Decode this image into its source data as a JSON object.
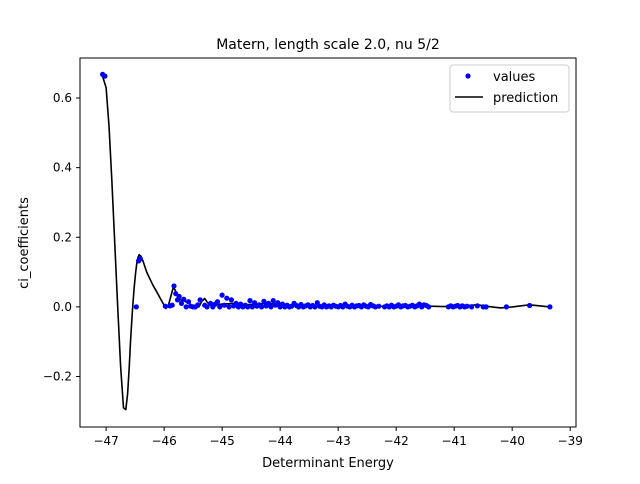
{
  "chart_data": {
    "type": "scatter",
    "title": "Matern, length scale 2.0, nu 5/2",
    "xlabel": "Determinant Energy",
    "ylabel": "ci_coefficients",
    "xlim": [
      -47.45,
      -38.9
    ],
    "ylim": [
      -0.345,
      0.715
    ],
    "xticks": [
      -47,
      -46,
      -45,
      -44,
      -43,
      -42,
      -41,
      -40,
      -39
    ],
    "yticks": [
      -0.2,
      0.0,
      0.2,
      0.4,
      0.6
    ],
    "grid": false,
    "legend": {
      "position": "top-right",
      "entries": [
        "values",
        "prediction"
      ]
    },
    "colors": {
      "values": "#0000ff",
      "prediction": "#000000"
    },
    "series": [
      {
        "name": "values",
        "style": "points",
        "x": [
          -47.06,
          -47.02,
          -46.48,
          -46.44,
          -46.41,
          -45.98,
          -45.9,
          -45.86,
          -45.83,
          -45.8,
          -45.77,
          -45.74,
          -45.7,
          -45.66,
          -45.62,
          -45.58,
          -45.54,
          -45.5,
          -45.46,
          -45.42,
          -45.38,
          -45.3,
          -45.26,
          -45.2,
          -45.16,
          -45.12,
          -45.08,
          -45.04,
          -45.0,
          -44.96,
          -44.92,
          -44.88,
          -44.84,
          -44.8,
          -44.76,
          -44.72,
          -44.68,
          -44.64,
          -44.6,
          -44.56,
          -44.52,
          -44.48,
          -44.44,
          -44.4,
          -44.36,
          -44.32,
          -44.28,
          -44.24,
          -44.2,
          -44.16,
          -44.12,
          -44.08,
          -44.04,
          -44.0,
          -43.96,
          -43.92,
          -43.88,
          -43.84,
          -43.8,
          -43.76,
          -43.72,
          -43.68,
          -43.64,
          -43.6,
          -43.56,
          -43.52,
          -43.48,
          -43.44,
          -43.4,
          -43.36,
          -43.32,
          -43.28,
          -43.24,
          -43.2,
          -43.16,
          -43.12,
          -43.08,
          -43.04,
          -43.0,
          -42.96,
          -42.92,
          -42.88,
          -42.84,
          -42.8,
          -42.76,
          -42.72,
          -42.68,
          -42.64,
          -42.6,
          -42.56,
          -42.52,
          -42.48,
          -42.44,
          -42.4,
          -42.36,
          -42.3,
          -42.2,
          -42.16,
          -42.12,
          -42.08,
          -42.04,
          -42.0,
          -41.96,
          -41.92,
          -41.88,
          -41.84,
          -41.8,
          -41.76,
          -41.72,
          -41.68,
          -41.64,
          -41.6,
          -41.56,
          -41.52,
          -41.48,
          -41.44,
          -41.1,
          -41.06,
          -41.02,
          -40.98,
          -40.94,
          -40.9,
          -40.86,
          -40.82,
          -40.78,
          -40.7,
          -40.6,
          -40.5,
          -40.45,
          -40.1,
          -39.7,
          -39.35
        ],
        "y": [
          0.668,
          0.663,
          0.0,
          0.132,
          0.138,
          0.002,
          0.003,
          0.005,
          0.06,
          0.038,
          0.02,
          0.03,
          0.01,
          0.022,
          0.0,
          0.015,
          0.002,
          0.0,
          0.0,
          0.006,
          0.02,
          0.005,
          0.0,
          0.01,
          0.0,
          0.008,
          0.015,
          0.0,
          0.034,
          0.005,
          0.025,
          0.0,
          0.02,
          0.003,
          0.01,
          0.0,
          0.008,
          0.0,
          0.005,
          0.0,
          0.018,
          0.0,
          0.012,
          0.002,
          0.006,
          0.0,
          0.016,
          0.003,
          0.01,
          0.0,
          0.018,
          0.005,
          0.012,
          0.0,
          0.008,
          0.0,
          0.005,
          0.0,
          0.002,
          0.01,
          0.004,
          0.0,
          0.007,
          0.0,
          0.003,
          0.006,
          0.0,
          0.004,
          0.0,
          0.012,
          0.002,
          0.0,
          0.006,
          0.0,
          0.003,
          0.0,
          0.005,
          0.002,
          0.0,
          0.004,
          0.0,
          0.008,
          0.002,
          0.0,
          0.005,
          0.0,
          0.003,
          0.004,
          0.0,
          0.006,
          0.002,
          0.0,
          0.007,
          0.003,
          0.0,
          0.002,
          0.0,
          0.003,
          0.0,
          0.005,
          0.0,
          0.002,
          0.006,
          0.0,
          0.003,
          0.004,
          0.0,
          0.002,
          0.005,
          0.0,
          0.003,
          0.008,
          0.0,
          0.006,
          0.004,
          0.0,
          0.0,
          0.003,
          0.0,
          0.002,
          0.004,
          0.0,
          0.003,
          0.0,
          0.002,
          0.0,
          0.003,
          0.0,
          0.0,
          0.0,
          0.004,
          0.0
        ]
      },
      {
        "name": "prediction",
        "style": "line",
        "x": [
          -47.07,
          -47.0,
          -46.95,
          -46.9,
          -46.85,
          -46.8,
          -46.75,
          -46.7,
          -46.66,
          -46.63,
          -46.6,
          -46.58,
          -46.55,
          -46.52,
          -46.49,
          -46.47,
          -46.45,
          -46.43,
          -46.4,
          -46.36,
          -46.3,
          -46.2,
          -46.1,
          -46.0,
          -45.97,
          -45.93,
          -45.9,
          -45.87,
          -45.84,
          -45.8,
          -45.76,
          -45.72,
          -45.66,
          -45.6,
          -45.5,
          -45.4,
          -45.35,
          -45.3,
          -45.25,
          -45.2,
          -45.0,
          -44.8,
          -44.6,
          -44.4,
          -44.2,
          -44.0,
          -43.8,
          -43.6,
          -43.4,
          -43.2,
          -43.0,
          -42.8,
          -42.6,
          -42.4,
          -42.2,
          -42.0,
          -41.8,
          -41.6,
          -41.4,
          -41.2,
          -41.0,
          -40.8,
          -40.6,
          -40.4,
          -40.2,
          -40.0,
          -39.7,
          -39.35
        ],
        "y": [
          0.668,
          0.63,
          0.52,
          0.36,
          0.18,
          0.0,
          -0.17,
          -0.29,
          -0.295,
          -0.25,
          -0.17,
          -0.1,
          -0.02,
          0.05,
          0.1,
          0.128,
          0.142,
          0.15,
          0.146,
          0.13,
          0.1,
          0.065,
          0.035,
          0.005,
          -0.005,
          0.003,
          0.02,
          0.04,
          0.057,
          0.045,
          0.025,
          0.02,
          0.018,
          0.012,
          0.003,
          0.0,
          0.016,
          0.024,
          0.012,
          0.004,
          0.008,
          0.01,
          0.006,
          0.008,
          0.01,
          0.006,
          0.005,
          0.004,
          0.003,
          0.002,
          0.001,
          0.003,
          0.002,
          0.001,
          0.002,
          0.003,
          0.002,
          0.004,
          0.002,
          0.001,
          0.002,
          0.004,
          0.006,
          0.001,
          -0.003,
          0.0,
          0.006,
          0.0
        ]
      }
    ]
  }
}
